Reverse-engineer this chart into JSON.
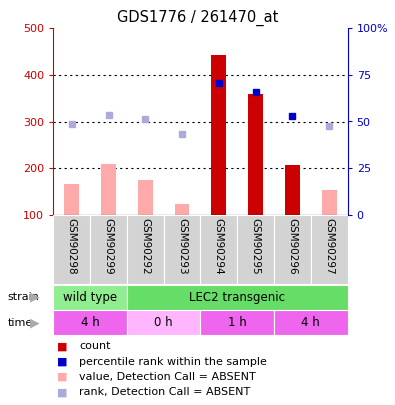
{
  "title": "GDS1776 / 261470_at",
  "samples": [
    "GSM90298",
    "GSM90299",
    "GSM90292",
    "GSM90293",
    "GSM90294",
    "GSM90295",
    "GSM90296",
    "GSM90297"
  ],
  "count_present": [
    null,
    null,
    null,
    null,
    443,
    358,
    207,
    null
  ],
  "count_absent": [
    165,
    208,
    175,
    123,
    null,
    null,
    null,
    153
  ],
  "rank_present": [
    null,
    null,
    null,
    null,
    382,
    363,
    312,
    null
  ],
  "rank_absent": [
    294,
    315,
    306,
    274,
    null,
    null,
    null,
    290
  ],
  "ylim_left": [
    100,
    500
  ],
  "ylim_right": [
    0,
    100
  ],
  "yticks_left": [
    100,
    200,
    300,
    400,
    500
  ],
  "yticks_right": [
    0,
    25,
    50,
    75,
    100
  ],
  "yticklabels_right": [
    "0",
    "25",
    "50",
    "75",
    "100%"
  ],
  "strain_groups": [
    {
      "label": "wild type",
      "start": 0,
      "end": 2,
      "color": "#90ee90"
    },
    {
      "label": "LEC2 transgenic",
      "start": 2,
      "end": 8,
      "color": "#66dd66"
    }
  ],
  "time_groups": [
    {
      "label": "4 h",
      "start": 0,
      "end": 2,
      "color": "#ee66ee"
    },
    {
      "label": "0 h",
      "start": 2,
      "end": 4,
      "color": "#ffb6ff"
    },
    {
      "label": "1 h",
      "start": 4,
      "end": 6,
      "color": "#ee66ee"
    },
    {
      "label": "4 h",
      "start": 6,
      "end": 8,
      "color": "#ee66ee"
    }
  ],
  "color_count_present": "#cc0000",
  "color_count_absent": "#ffaaaa",
  "color_rank_present": "#0000cc",
  "color_rank_absent": "#aaaadd",
  "bar_width": 0.4,
  "left_axis_color": "#cc0000",
  "right_axis_color": "#0000cc",
  "legend_items": [
    {
      "color": "#cc0000",
      "label": "count"
    },
    {
      "color": "#0000cc",
      "label": "percentile rank within the sample"
    },
    {
      "color": "#ffaaaa",
      "label": "value, Detection Call = ABSENT"
    },
    {
      "color": "#aaaadd",
      "label": "rank, Detection Call = ABSENT"
    }
  ]
}
